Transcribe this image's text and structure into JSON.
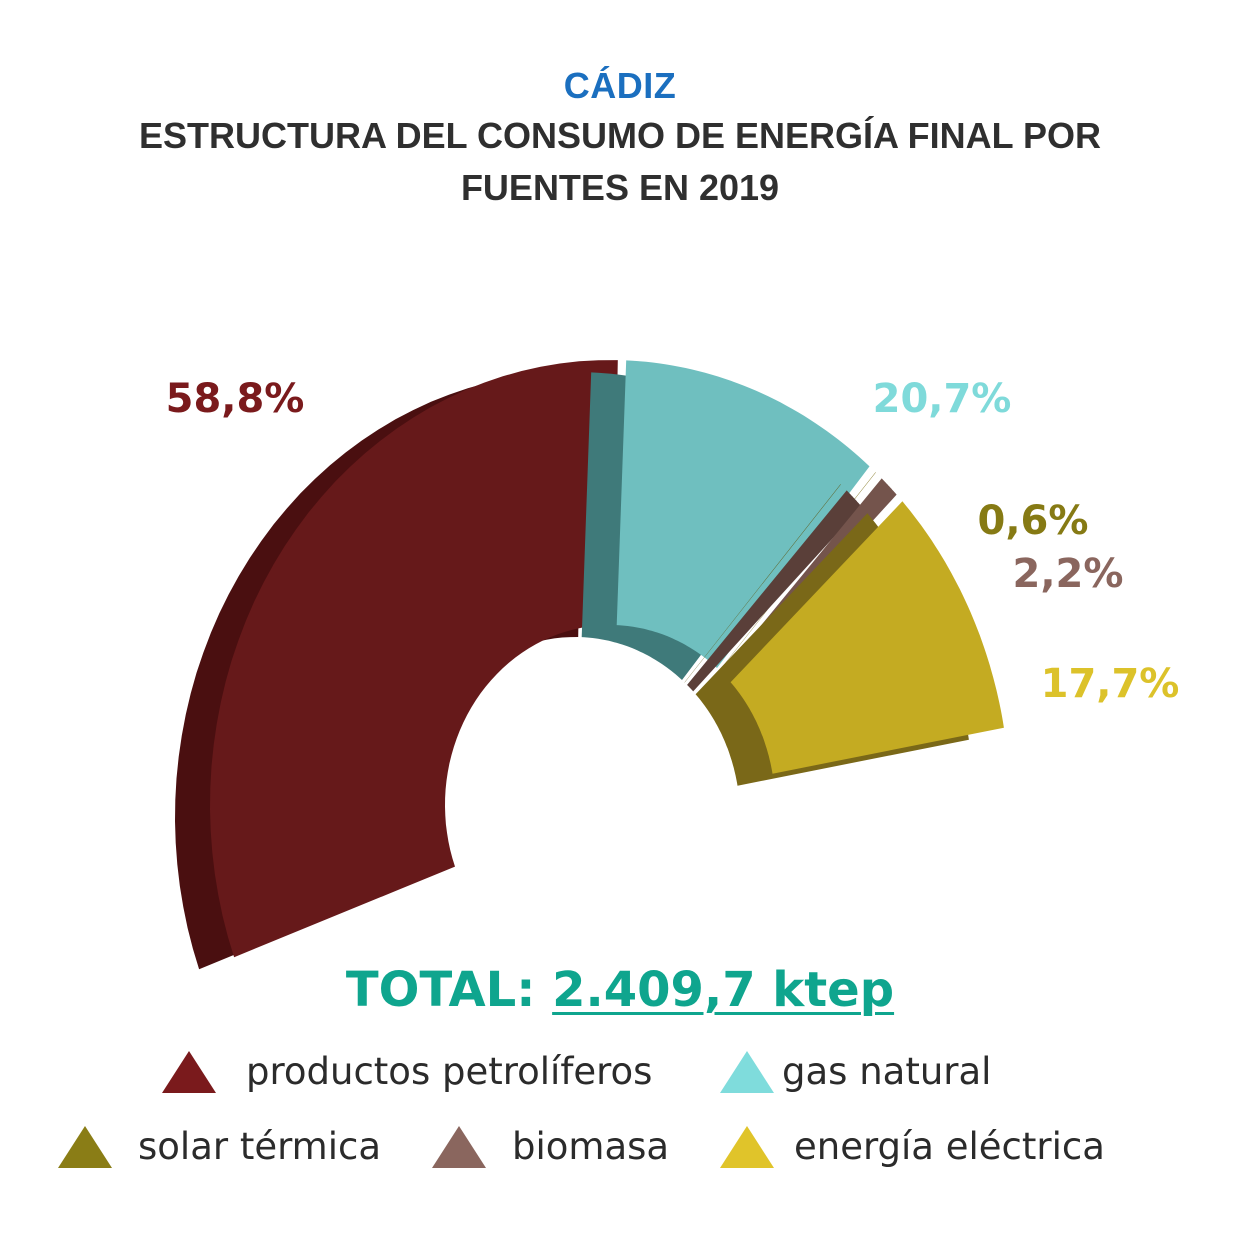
{
  "header": {
    "region": "CÁDIZ",
    "title": "ESTRUCTURA DEL CONSUMO DE ENERGÍA FINAL POR FUENTES EN 2019"
  },
  "total": {
    "label": "TOTAL:",
    "value": "2.409,7 ktep"
  },
  "chart_data": {
    "type": "pie",
    "variant": "3d-half-donut",
    "title": "ESTRUCTURA DEL CONSUMO DE ENERGÍA FINAL POR FUENTES EN 2019",
    "subtitle": "CÁDIZ",
    "unit": "%",
    "total": "2.409,7 ktep",
    "legend_position": "bottom",
    "series": [
      {
        "name": "productos petrolíferos",
        "value": 58.8,
        "label": "58,8%",
        "color": "#66191a",
        "side": "#4a0f10",
        "label_color": "#7a1a1c",
        "legend_color": "#7a1a1c"
      },
      {
        "name": "gas natural",
        "value": 20.7,
        "label": "20,7%",
        "color": "#6fbfbf",
        "side": "#3f7a7a",
        "label_color": "#7fdada",
        "legend_color": "#7fdcdc"
      },
      {
        "name": "solar térmica",
        "value": 0.6,
        "label": "0,6%",
        "color": "#7a6d12",
        "side": "#5c530c",
        "label_color": "#867a14",
        "legend_color": "#8a7d16"
      },
      {
        "name": "biomasa",
        "value": 2.2,
        "label": "2,2%",
        "color": "#74544c",
        "side": "#5a3f39",
        "label_color": "#8a665e",
        "legend_color": "#8a665e"
      },
      {
        "name": "energía eléctrica",
        "value": 17.7,
        "label": "17,7%",
        "color": "#c4ab22",
        "side": "#7a6818",
        "label_color": "#dcc22a",
        "legend_color": "#e0c42a"
      }
    ]
  },
  "legend": [
    {
      "label": "productos petrolíferos",
      "color": "#7a1a1c"
    },
    {
      "label": "gas natural",
      "color": "#7fdcdc"
    },
    {
      "label": "solar térmica",
      "color": "#8a7d16"
    },
    {
      "label": "biomasa",
      "color": "#8a665e"
    },
    {
      "label": "energía eléctrica",
      "color": "#e0c42a"
    }
  ]
}
